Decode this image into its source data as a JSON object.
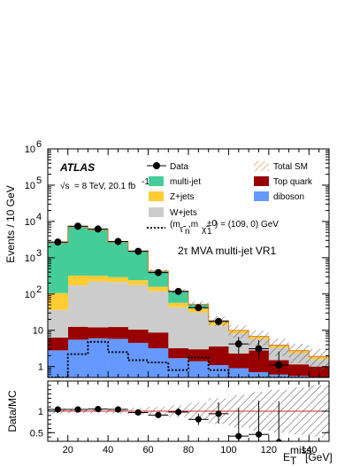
{
  "chart_data": {
    "type": "histogram",
    "bin_edges": [
      10,
      20,
      30,
      40,
      50,
      60,
      70,
      80,
      90,
      100,
      110,
      120,
      130,
      140,
      150
    ],
    "upper": {
      "ylabel": "Events / 10 GeV",
      "yscale": "log",
      "ylim": [
        0.5,
        1000000
      ],
      "yticks": [
        {
          "v": 1,
          "t": "1"
        },
        {
          "v": 10,
          "t": "10"
        },
        {
          "v": 100,
          "t": "10",
          "exp": "2"
        },
        {
          "v": 1000,
          "t": "10",
          "exp": "3"
        },
        {
          "v": 10000,
          "t": "10",
          "exp": "4"
        },
        {
          "v": 100000,
          "t": "10",
          "exp": "5"
        },
        {
          "v": 1000000,
          "t": "10",
          "exp": "6"
        }
      ],
      "stack": [
        {
          "name": "diboson",
          "color": "#6699ff",
          "values": [
            2.8,
            5.5,
            6,
            5.8,
            4.5,
            3.2,
            1.7,
            1.4,
            1.1,
            0.9,
            0.7,
            0.6,
            0.55,
            0.5
          ]
        },
        {
          "name": "Top quark",
          "color": "#990000",
          "values": [
            3.5,
            7,
            6,
            6.5,
            6,
            5.5,
            1.5,
            1.6,
            2.5,
            1.4,
            2.1,
            0.9,
            0.6,
            0.5
          ]
        },
        {
          "name": "W+jets",
          "color": "#cccccc",
          "values": [
            30,
            160,
            210,
            200,
            165,
            110,
            40,
            28,
            10,
            6,
            3,
            1.8,
            1.2,
            0.6
          ]
        },
        {
          "name": "Z+jets",
          "color": "#ffcc33",
          "values": [
            70,
            150,
            95,
            80,
            65,
            40,
            14,
            9,
            3,
            1.5,
            1,
            0.6,
            0.4,
            0.3
          ]
        },
        {
          "name": "multi-jet",
          "color": "#44cc99",
          "values": [
            2500,
            6800,
            5600,
            2400,
            1300,
            270,
            62,
            12,
            2,
            0,
            0,
            0,
            0,
            0
          ]
        }
      ],
      "total_sm": [
        2600,
        7100,
        5900,
        2700,
        1540,
        428,
        120,
        52,
        18.6,
        9.9,
        6.8,
        3.9,
        2.75,
        1.9
      ],
      "signal": {
        "values": [
          0.5,
          2.2,
          4.8,
          2.5,
          1.5,
          1.3,
          0.8,
          1.8,
          0.8,
          0.5,
          0.4,
          0.3,
          0.3,
          0.3
        ]
      },
      "data": {
        "x": [
          15,
          25,
          35,
          45,
          55,
          65,
          75,
          85,
          95,
          105,
          115,
          125
        ],
        "y": [
          2700,
          7400,
          6200,
          2800,
          1500,
          390,
          118,
          42,
          17.5,
          4.2,
          3.1,
          1.1
        ],
        "err_lo": [
          2650,
          7300,
          6100,
          2740,
          1460,
          370,
          107,
          36,
          13.5,
          2.3,
          1.6,
          0.7
        ],
        "err_hi": [
          2750,
          7500,
          6300,
          2860,
          1540,
          410,
          129,
          49,
          22,
          6.5,
          5.3,
          2.6
        ]
      },
      "legend": {
        "data": "Data",
        "multijet": "multi-jet",
        "zjets": "Z+jets",
        "wjets": "W+jets",
        "signal": "(m",
        "signal_sub1": "τ̃",
        "signal_sub1b": "n",
        "signal_mid": ",m",
        "signal_sub2": "χ̃",
        "signal_sub2b": "1",
        "signal_sup2": "±0",
        "signal_end": ") = (109, 0) GeV",
        "total": "Total SM",
        "top": "Top quark",
        "diboson": "diboson"
      },
      "atlas": "ATLAS",
      "lumi_root": "√s",
      "lumi_text": "= 8 TeV, 20.1 fb",
      "lumi_exp": "-1",
      "region": "2τ MVA multi-jet VR1"
    },
    "lower": {
      "ylabel": "Data/MC",
      "ylim": [
        0.3,
        1.7
      ],
      "yticks": [
        {
          "v": 0.5,
          "t": "0.5"
        },
        {
          "v": 1,
          "t": "1"
        }
      ],
      "ratio": [
        1.04,
        1.04,
        1.05,
        1.04,
        0.97,
        0.91,
        0.98,
        0.81,
        0.94,
        0.42,
        0.46,
        0.28
      ],
      "ratio_err_lo": [
        0.02,
        0.01,
        0.015,
        0.02,
        0.03,
        0.05,
        0.09,
        0.13,
        0.23,
        0.2,
        0.2,
        0.2
      ],
      "ratio_err_hi": [
        0.02,
        0.01,
        0.015,
        0.02,
        0.03,
        0.05,
        0.09,
        0.13,
        0.27,
        0.65,
        0.78,
        0.95
      ],
      "band": [
        0.06,
        0.05,
        0.05,
        0.06,
        0.08,
        0.1,
        0.14,
        0.2,
        0.3,
        0.38,
        0.45,
        0.5,
        0.55,
        0.6
      ]
    },
    "xlabel": "E",
    "xlabel_sub": "T",
    "xlabel_sup": "miss",
    "xlabel_unit": "[GeV]",
    "xticks": [
      20,
      40,
      60,
      80,
      100,
      120,
      140
    ]
  }
}
